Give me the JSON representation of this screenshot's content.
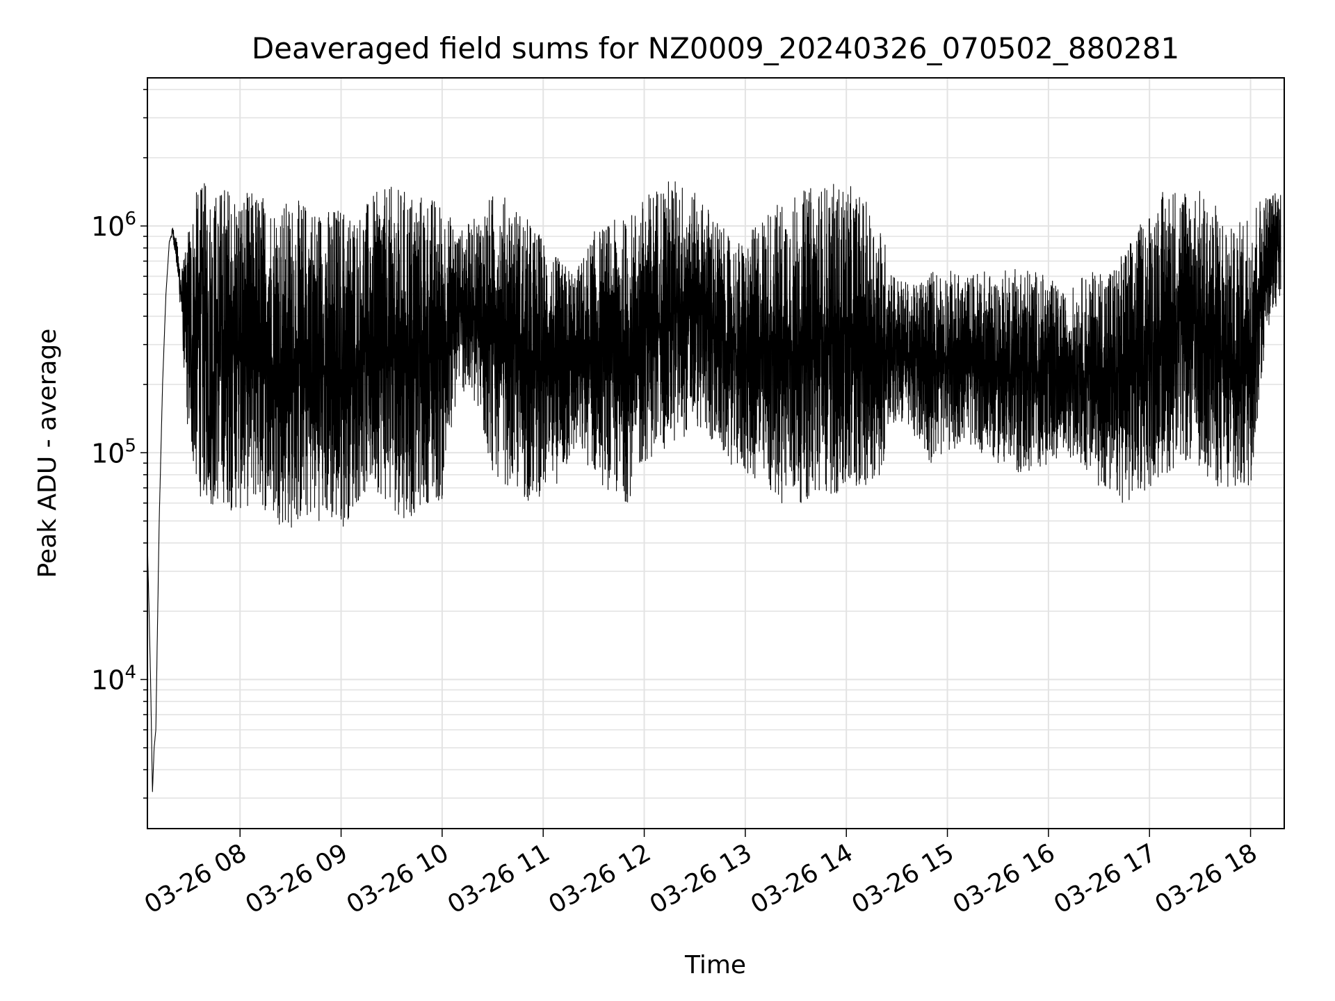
{
  "chart_data": {
    "type": "line",
    "title": "Deaveraged field sums for NZ0009_20240326_070502_880281",
    "xlabel": "Time",
    "ylabel": "Peak ADU - average",
    "x_start": "2024-03-26 07:05",
    "x_end": "2024-03-26 18:20",
    "xlim": [
      "2024-03-26 07:05",
      "2024-03-26 18:20"
    ],
    "x_ticks": [
      {
        "time": "2024-03-26 08:00",
        "label": "03-26 08"
      },
      {
        "time": "2024-03-26 09:00",
        "label": "03-26 09"
      },
      {
        "time": "2024-03-26 10:00",
        "label": "03-26 10"
      },
      {
        "time": "2024-03-26 11:00",
        "label": "03-26 11"
      },
      {
        "time": "2024-03-26 12:00",
        "label": "03-26 12"
      },
      {
        "time": "2024-03-26 13:00",
        "label": "03-26 13"
      },
      {
        "time": "2024-03-26 14:00",
        "label": "03-26 14"
      },
      {
        "time": "2024-03-26 15:00",
        "label": "03-26 15"
      },
      {
        "time": "2024-03-26 16:00",
        "label": "03-26 16"
      },
      {
        "time": "2024-03-26 17:00",
        "label": "03-26 17"
      },
      {
        "time": "2024-03-26 18:00",
        "label": "03-26 18"
      }
    ],
    "y_scale": "log",
    "ylim": [
      2200,
      4500000
    ],
    "y_ticks": [
      {
        "value": 10000,
        "base": "10",
        "exp": "4"
      },
      {
        "value": 100000,
        "base": "10",
        "exp": "5"
      },
      {
        "value": 1000000,
        "base": "10",
        "exp": "6"
      }
    ],
    "grid": true,
    "series": [
      {
        "color": "#000000",
        "x": [
          "2024-03-26 07:05",
          "2024-03-26 07:06",
          "2024-03-26 07:07",
          "2024-03-26 07:08",
          "2024-03-26 07:09",
          "2024-03-26 07:10",
          "2024-03-26 07:12",
          "2024-03-26 07:14",
          "2024-03-26 07:16",
          "2024-03-26 07:18",
          "2024-03-26 07:20",
          "2024-03-26 07:22",
          "2024-03-26 07:25",
          "2024-03-26 07:28",
          "2024-03-26 07:30",
          "2024-03-26 07:35",
          "2024-03-26 07:40",
          "2024-03-26 07:45",
          "2024-03-26 07:50",
          "2024-03-26 07:55",
          "2024-03-26 08:00",
          "2024-03-26 08:10",
          "2024-03-26 08:20",
          "2024-03-26 08:30",
          "2024-03-26 08:40",
          "2024-03-26 08:50",
          "2024-03-26 09:00",
          "2024-03-26 09:10",
          "2024-03-26 09:20",
          "2024-03-26 09:30",
          "2024-03-26 09:40",
          "2024-03-26 09:50",
          "2024-03-26 10:00",
          "2024-03-26 10:10",
          "2024-03-26 10:20",
          "2024-03-26 10:30",
          "2024-03-26 10:40",
          "2024-03-26 10:50",
          "2024-03-26 11:00",
          "2024-03-26 11:10",
          "2024-03-26 11:20",
          "2024-03-26 11:30",
          "2024-03-26 11:40",
          "2024-03-26 11:50",
          "2024-03-26 12:00",
          "2024-03-26 12:10",
          "2024-03-26 12:20",
          "2024-03-26 12:30",
          "2024-03-26 12:40",
          "2024-03-26 12:50",
          "2024-03-26 13:00",
          "2024-03-26 13:10",
          "2024-03-26 13:20",
          "2024-03-26 13:30",
          "2024-03-26 13:40",
          "2024-03-26 13:50",
          "2024-03-26 14:00",
          "2024-03-26 14:10",
          "2024-03-26 14:20",
          "2024-03-26 14:30",
          "2024-03-26 14:40",
          "2024-03-26 14:50",
          "2024-03-26 15:00",
          "2024-03-26 15:10",
          "2024-03-26 15:20",
          "2024-03-26 15:30",
          "2024-03-26 15:40",
          "2024-03-26 15:50",
          "2024-03-26 16:00",
          "2024-03-26 16:10",
          "2024-03-26 16:20",
          "2024-03-26 16:30",
          "2024-03-26 16:40",
          "2024-03-26 16:50",
          "2024-03-26 17:00",
          "2024-03-26 17:10",
          "2024-03-26 17:20",
          "2024-03-26 17:30",
          "2024-03-26 17:40",
          "2024-03-26 17:50",
          "2024-03-26 18:00",
          "2024-03-26 18:10",
          "2024-03-26 18:18"
        ],
        "y_high": [
          40000,
          20000,
          9000,
          3200,
          5000,
          6000,
          50000,
          200000,
          500000,
          850000,
          1000000,
          900000,
          650000,
          800000,
          1200000,
          1500000,
          1600000,
          1500000,
          1550000,
          1500000,
          1400000,
          1450000,
          1300000,
          1300000,
          1300000,
          1200000,
          1250000,
          1150000,
          1400000,
          1500000,
          1450000,
          1400000,
          1300000,
          950000,
          1100000,
          1400000,
          1350000,
          1100000,
          900000,
          700000,
          650000,
          950000,
          1050000,
          1100000,
          1350000,
          1600000,
          1650000,
          1400000,
          1200000,
          900000,
          850000,
          1150000,
          1300000,
          1400000,
          1500000,
          1550000,
          1550000,
          1350000,
          1000000,
          600000,
          550000,
          650000,
          650000,
          600000,
          650000,
          600000,
          700000,
          650000,
          600000,
          500000,
          600000,
          650000,
          700000,
          900000,
          1200000,
          1500000,
          1550000,
          1450000,
          1250000,
          950000,
          1300000,
          1400000,
          1450000
        ],
        "y_low": [
          40000,
          20000,
          9000,
          3200,
          5000,
          6000,
          50000,
          200000,
          500000,
          850000,
          900000,
          700000,
          400000,
          150000,
          100000,
          65000,
          60000,
          55000,
          60000,
          55000,
          55000,
          60000,
          50000,
          45000,
          50000,
          50000,
          45000,
          60000,
          70000,
          55000,
          50000,
          60000,
          60000,
          200000,
          150000,
          80000,
          70000,
          60000,
          65000,
          75000,
          100000,
          80000,
          65000,
          60000,
          90000,
          100000,
          110000,
          130000,
          110000,
          90000,
          80000,
          70000,
          60000,
          60000,
          60000,
          65000,
          60000,
          70000,
          80000,
          140000,
          120000,
          90000,
          100000,
          110000,
          100000,
          90000,
          80000,
          80000,
          90000,
          100000,
          85000,
          70000,
          60000,
          60000,
          70000,
          80000,
          90000,
          85000,
          70000,
          60000,
          70000,
          350000,
          500000
        ]
      }
    ]
  }
}
